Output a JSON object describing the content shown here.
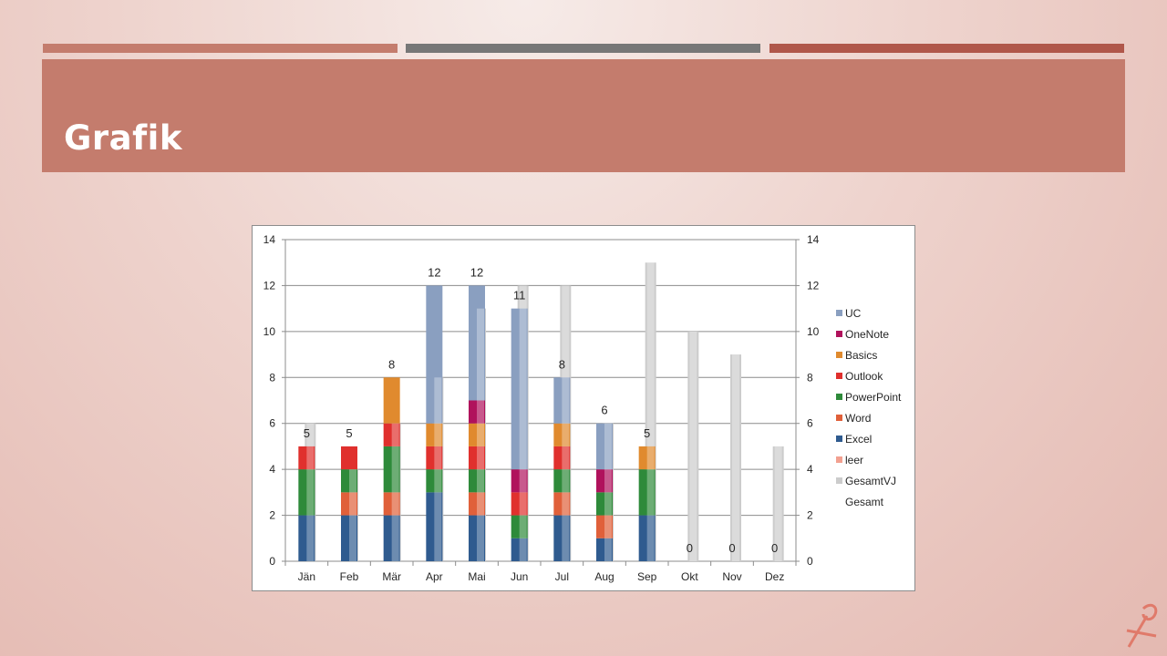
{
  "slide": {
    "title": "Grafik"
  },
  "colors": {
    "UC": "#8a9fc0",
    "OneNote": "#b0125c",
    "Basics": "#e08a2e",
    "Outlook": "#e0302d",
    "PowerPoint": "#2e8a3a",
    "Word": "#e0603a",
    "Excel": "#2f5b8f",
    "leer": "#f2a090",
    "GesamtVJ": "#cccccc",
    "Gesamt": "#ffffff"
  },
  "chart_data": {
    "type": "bar",
    "stacked": true,
    "categories": [
      "Jän",
      "Feb",
      "Mär",
      "Apr",
      "Mai",
      "Jun",
      "Jul",
      "Aug",
      "Sep",
      "Okt",
      "Nov",
      "Dez"
    ],
    "ylim": [
      0,
      14
    ],
    "yticks": [
      0,
      2,
      4,
      6,
      8,
      10,
      12,
      14
    ],
    "secondary_ylim": [
      0,
      14
    ],
    "grid": true,
    "legend_position": "right",
    "series": [
      {
        "name": "Excel",
        "values": [
          2,
          2,
          2,
          3,
          2,
          1,
          2,
          1,
          2,
          0,
          0,
          0
        ]
      },
      {
        "name": "Word",
        "values": [
          0,
          1,
          1,
          0,
          1,
          0,
          1,
          1,
          0,
          0,
          0,
          0
        ]
      },
      {
        "name": "PowerPoint",
        "values": [
          2,
          1,
          2,
          1,
          1,
          1,
          1,
          1,
          2,
          0,
          0,
          0
        ]
      },
      {
        "name": "Outlook",
        "values": [
          1,
          1,
          1,
          1,
          1,
          1,
          1,
          0,
          0,
          0,
          0,
          0
        ]
      },
      {
        "name": "Basics",
        "values": [
          0,
          0,
          2,
          1,
          1,
          0,
          1,
          0,
          1,
          0,
          0,
          0
        ]
      },
      {
        "name": "OneNote",
        "values": [
          0,
          0,
          0,
          0,
          1,
          1,
          0,
          1,
          0,
          0,
          0,
          0
        ]
      },
      {
        "name": "UC",
        "values": [
          0,
          0,
          0,
          6,
          5,
          7,
          2,
          2,
          0,
          0,
          0,
          0
        ]
      },
      {
        "name": "leer",
        "values": [
          0,
          0,
          0,
          0,
          0,
          0,
          0,
          0,
          0,
          0,
          0,
          0
        ]
      }
    ],
    "gesamtvj": {
      "name": "GesamtVJ",
      "values": [
        6,
        4,
        6,
        8,
        11,
        12,
        12,
        6,
        13,
        10,
        9,
        5
      ]
    },
    "gesamt": {
      "name": "Gesamt",
      "values": [
        5,
        5,
        8,
        12,
        12,
        11,
        8,
        6,
        5,
        0,
        0,
        0
      ]
    },
    "legend": [
      "UC",
      "OneNote",
      "Basics",
      "Outlook",
      "PowerPoint",
      "Word",
      "Excel",
      "leer",
      "GesamtVJ",
      "Gesamt"
    ]
  }
}
